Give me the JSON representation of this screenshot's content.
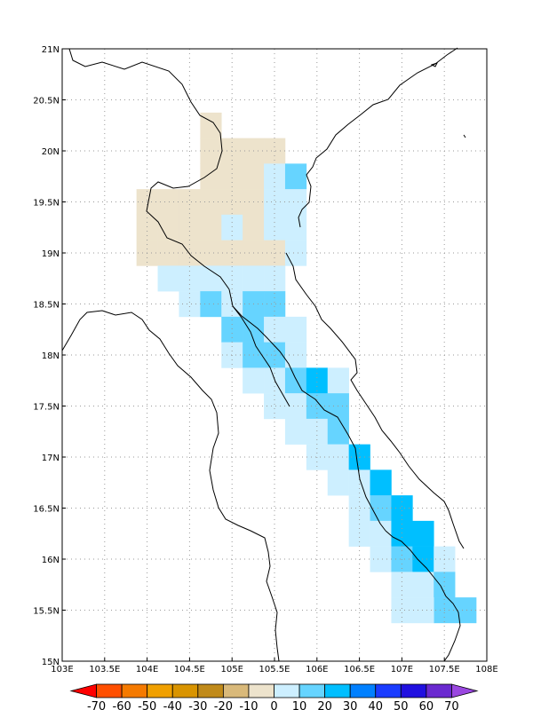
{
  "map": {
    "lon_range": [
      103,
      108
    ],
    "lat_range": [
      15,
      21
    ],
    "grid": "dotted",
    "lon_ticks": [
      "103E",
      "103.5E",
      "104E",
      "104.5E",
      "105E",
      "105.5E",
      "106E",
      "106.5E",
      "107E",
      "107.5E",
      "108E"
    ],
    "lat_ticks": [
      "15N",
      "15.5N",
      "16N",
      "16.5N",
      "17N",
      "17.5N",
      "18N",
      "18.5N",
      "19N",
      "19.5N",
      "20N",
      "20.5N",
      "21N"
    ]
  },
  "colorbar": {
    "levels": [
      "-70",
      "-60",
      "-50",
      "-40",
      "-30",
      "-20",
      "-10",
      "0",
      "10",
      "20",
      "30",
      "40",
      "50",
      "60",
      "70"
    ],
    "colors": [
      "#ff0000",
      "#ff4f00",
      "#f57a00",
      "#f0a000",
      "#d99400",
      "#c08a1a",
      "#d9b97a",
      "#ede3cc",
      "#cdefff",
      "#66d4ff",
      "#00bfff",
      "#0080ff",
      "#1a3cff",
      "#2010e0",
      "#6a2ad0",
      "#9a47e0"
    ]
  },
  "chart_data": {
    "type": "heatmap",
    "cell_size_deg": 0.25,
    "note_value": "class index: -1 = -10..0, 1 = 0..10, 2 = 10..20, 3 = 20..30",
    "cells": [
      {
        "lon": 104.75,
        "lat": 20.25,
        "v": -1
      },
      {
        "lon": 104.75,
        "lat": 20.0,
        "v": -1
      },
      {
        "lon": 105.0,
        "lat": 20.0,
        "v": -1
      },
      {
        "lon": 105.25,
        "lat": 20.0,
        "v": -1
      },
      {
        "lon": 105.5,
        "lat": 20.0,
        "v": -1
      },
      {
        "lon": 104.75,
        "lat": 19.75,
        "v": -1
      },
      {
        "lon": 105.0,
        "lat": 19.75,
        "v": -1
      },
      {
        "lon": 105.25,
        "lat": 19.75,
        "v": -1
      },
      {
        "lon": 105.5,
        "lat": 19.75,
        "v": 1
      },
      {
        "lon": 105.75,
        "lat": 19.75,
        "v": 2
      },
      {
        "lon": 104.0,
        "lat": 19.5,
        "v": -1
      },
      {
        "lon": 104.25,
        "lat": 19.5,
        "v": -1
      },
      {
        "lon": 104.5,
        "lat": 19.5,
        "v": -1
      },
      {
        "lon": 104.75,
        "lat": 19.5,
        "v": -1
      },
      {
        "lon": 105.0,
        "lat": 19.5,
        "v": -1
      },
      {
        "lon": 105.25,
        "lat": 19.5,
        "v": -1
      },
      {
        "lon": 105.5,
        "lat": 19.5,
        "v": 1
      },
      {
        "lon": 105.75,
        "lat": 19.5,
        "v": 1
      },
      {
        "lon": 104.0,
        "lat": 19.25,
        "v": -1
      },
      {
        "lon": 104.25,
        "lat": 19.25,
        "v": -1
      },
      {
        "lon": 104.5,
        "lat": 19.25,
        "v": -1
      },
      {
        "lon": 104.75,
        "lat": 19.25,
        "v": -1
      },
      {
        "lon": 105.0,
        "lat": 19.25,
        "v": 1
      },
      {
        "lon": 105.25,
        "lat": 19.25,
        "v": -1
      },
      {
        "lon": 105.5,
        "lat": 19.25,
        "v": 1
      },
      {
        "lon": 105.75,
        "lat": 19.25,
        "v": 1
      },
      {
        "lon": 104.0,
        "lat": 19.0,
        "v": -1
      },
      {
        "lon": 104.25,
        "lat": 19.0,
        "v": -1
      },
      {
        "lon": 104.5,
        "lat": 19.0,
        "v": -1
      },
      {
        "lon": 104.75,
        "lat": 19.0,
        "v": -1
      },
      {
        "lon": 105.0,
        "lat": 19.0,
        "v": -1
      },
      {
        "lon": 105.25,
        "lat": 19.0,
        "v": -1
      },
      {
        "lon": 105.5,
        "lat": 19.0,
        "v": -1
      },
      {
        "lon": 105.75,
        "lat": 19.0,
        "v": 1
      },
      {
        "lon": 104.25,
        "lat": 18.75,
        "v": 1
      },
      {
        "lon": 104.5,
        "lat": 18.75,
        "v": 1
      },
      {
        "lon": 104.75,
        "lat": 18.75,
        "v": 1
      },
      {
        "lon": 105.0,
        "lat": 18.75,
        "v": 1
      },
      {
        "lon": 105.25,
        "lat": 18.75,
        "v": 1
      },
      {
        "lon": 105.5,
        "lat": 18.75,
        "v": 1
      },
      {
        "lon": 104.5,
        "lat": 18.5,
        "v": 1
      },
      {
        "lon": 104.75,
        "lat": 18.5,
        "v": 2
      },
      {
        "lon": 105.0,
        "lat": 18.5,
        "v": 1
      },
      {
        "lon": 105.25,
        "lat": 18.5,
        "v": 2
      },
      {
        "lon": 105.5,
        "lat": 18.5,
        "v": 2
      },
      {
        "lon": 105.0,
        "lat": 18.25,
        "v": 2
      },
      {
        "lon": 105.25,
        "lat": 18.25,
        "v": 2
      },
      {
        "lon": 105.5,
        "lat": 18.25,
        "v": 1
      },
      {
        "lon": 105.75,
        "lat": 18.25,
        "v": 1
      },
      {
        "lon": 105.0,
        "lat": 18.0,
        "v": 1
      },
      {
        "lon": 105.25,
        "lat": 18.0,
        "v": 2
      },
      {
        "lon": 105.5,
        "lat": 18.0,
        "v": 2
      },
      {
        "lon": 105.75,
        "lat": 18.0,
        "v": 1
      },
      {
        "lon": 105.25,
        "lat": 17.75,
        "v": 1
      },
      {
        "lon": 105.5,
        "lat": 17.75,
        "v": 1
      },
      {
        "lon": 105.75,
        "lat": 17.75,
        "v": 2
      },
      {
        "lon": 106.0,
        "lat": 17.75,
        "v": 3
      },
      {
        "lon": 106.25,
        "lat": 17.75,
        "v": 1
      },
      {
        "lon": 105.5,
        "lat": 17.5,
        "v": 1
      },
      {
        "lon": 105.75,
        "lat": 17.5,
        "v": 1
      },
      {
        "lon": 106.0,
        "lat": 17.5,
        "v": 2
      },
      {
        "lon": 106.25,
        "lat": 17.5,
        "v": 2
      },
      {
        "lon": 105.75,
        "lat": 17.25,
        "v": 1
      },
      {
        "lon": 106.0,
        "lat": 17.25,
        "v": 1
      },
      {
        "lon": 106.25,
        "lat": 17.25,
        "v": 2
      },
      {
        "lon": 106.0,
        "lat": 17.0,
        "v": 1
      },
      {
        "lon": 106.25,
        "lat": 17.0,
        "v": 1
      },
      {
        "lon": 106.5,
        "lat": 17.0,
        "v": 3
      },
      {
        "lon": 106.25,
        "lat": 16.75,
        "v": 1
      },
      {
        "lon": 106.5,
        "lat": 16.75,
        "v": 1
      },
      {
        "lon": 106.75,
        "lat": 16.75,
        "v": 3
      },
      {
        "lon": 106.5,
        "lat": 16.5,
        "v": 1
      },
      {
        "lon": 106.75,
        "lat": 16.5,
        "v": 2
      },
      {
        "lon": 107.0,
        "lat": 16.5,
        "v": 3
      },
      {
        "lon": 106.5,
        "lat": 16.25,
        "v": 1
      },
      {
        "lon": 106.75,
        "lat": 16.25,
        "v": 1
      },
      {
        "lon": 107.0,
        "lat": 16.25,
        "v": 3
      },
      {
        "lon": 107.25,
        "lat": 16.25,
        "v": 3
      },
      {
        "lon": 106.75,
        "lat": 16.0,
        "v": 1
      },
      {
        "lon": 107.0,
        "lat": 16.0,
        "v": 2
      },
      {
        "lon": 107.25,
        "lat": 16.0,
        "v": 3
      },
      {
        "lon": 107.5,
        "lat": 16.0,
        "v": 1
      },
      {
        "lon": 107.0,
        "lat": 15.75,
        "v": 1
      },
      {
        "lon": 107.25,
        "lat": 15.75,
        "v": 1
      },
      {
        "lon": 107.5,
        "lat": 15.75,
        "v": 2
      },
      {
        "lon": 107.5,
        "lat": 15.5,
        "v": 2
      },
      {
        "lon": 107.75,
        "lat": 15.5,
        "v": 2
      },
      {
        "lon": 107.0,
        "lat": 15.5,
        "v": 1
      },
      {
        "lon": 107.25,
        "lat": 15.5,
        "v": 1
      }
    ]
  }
}
